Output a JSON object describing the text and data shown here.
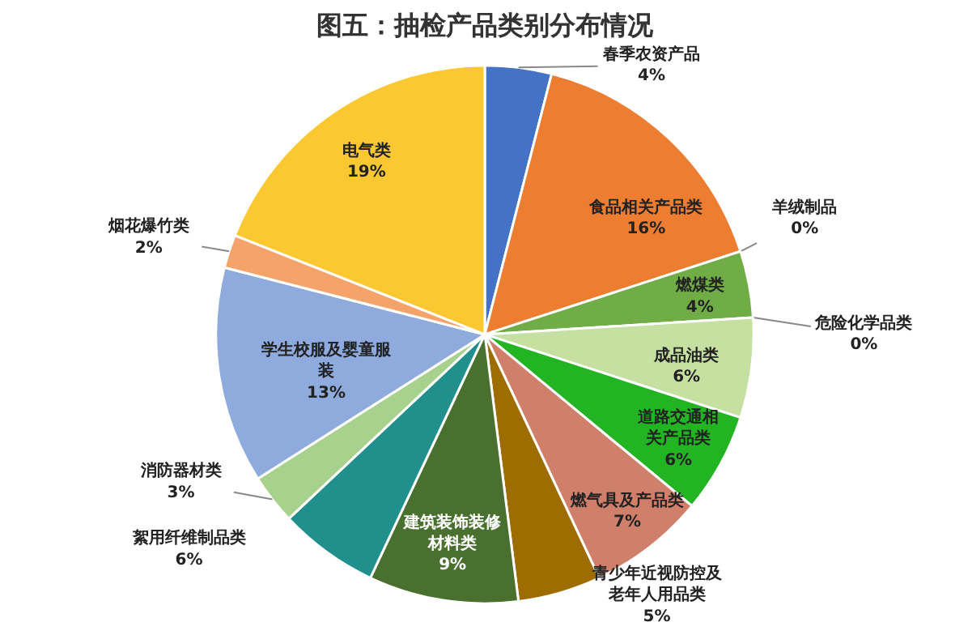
{
  "chart_data": {
    "type": "pie",
    "title": "图五：抽检产品类别分布情况",
    "categories": [
      "春季农资产品",
      "食品相关产品类",
      "羊绒制品",
      "燃煤类",
      "危险化学品类",
      "成品油类",
      "道路交通相关产品类",
      "燃气具及产品类",
      "青少年近视防控及老年人用品类",
      "建筑装饰装修材料类",
      "絮用纤维制品类",
      "消防器材类",
      "学生校服及婴童服装",
      "烟花爆竹类",
      "电气类"
    ],
    "values": [
      4,
      16,
      0,
      4,
      0,
      6,
      6,
      7,
      5,
      9,
      6,
      3,
      13,
      2,
      19
    ],
    "colors": [
      "#4472c4",
      "#ed7d31",
      "#f4b183",
      "#70ad47",
      "#5b9bd5",
      "#c5e0a0",
      "#22b422",
      "#d0806a",
      "#9e6d00",
      "#4a7030",
      "#21908c",
      "#a9d18e",
      "#8faadc",
      "#f4a46a",
      "#fcc832"
    ],
    "value_labels": [
      "4%",
      "16%",
      "0%",
      "4%",
      "0%",
      "6%",
      "6%",
      "7%",
      "5%",
      "9%",
      "6%",
      "3%",
      "13%",
      "2%",
      "19%"
    ]
  }
}
